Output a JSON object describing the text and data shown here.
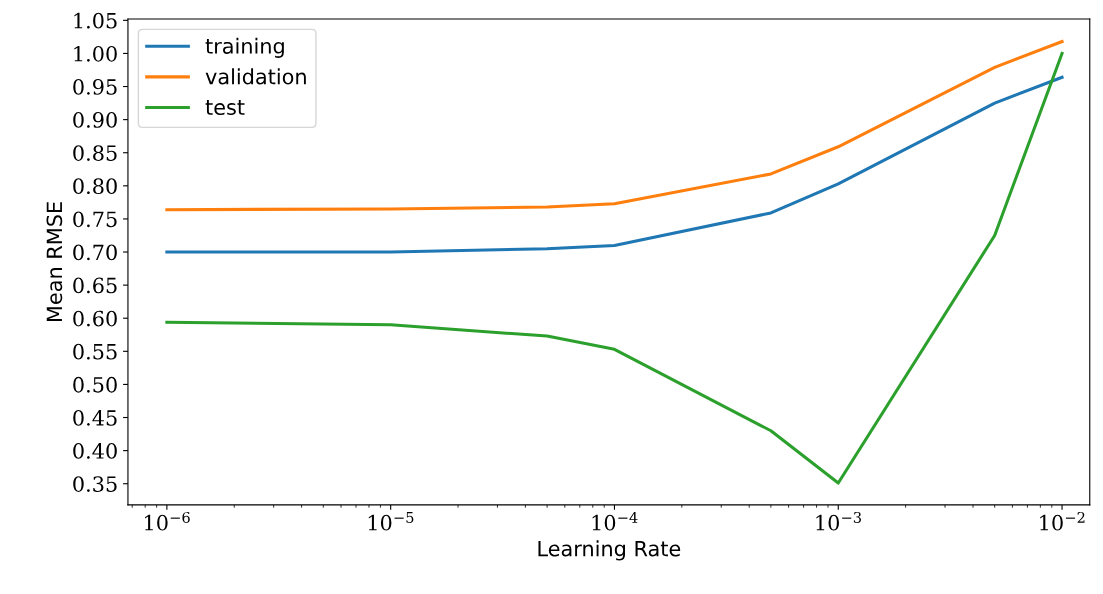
{
  "chart_data": {
    "type": "line",
    "xlabel": "Learning Rate",
    "ylabel": "Mean RMSE",
    "log": "x",
    "x": [
      1e-06,
      1e-05,
      5e-05,
      0.0001,
      0.0005,
      0.001,
      0.005,
      0.01
    ],
    "series": [
      {
        "name": "training",
        "color": "#1f77b4",
        "values": [
          0.7,
          0.7,
          0.705,
          0.71,
          0.759,
          0.803,
          0.925,
          0.964
        ]
      },
      {
        "name": "validation",
        "color": "#ff7f0e",
        "values": [
          0.764,
          0.765,
          0.768,
          0.773,
          0.818,
          0.859,
          0.979,
          1.018
        ]
      },
      {
        "name": "test",
        "color": "#2ca02c",
        "values": [
          0.594,
          0.59,
          0.573,
          0.553,
          0.43,
          0.351,
          0.725,
          1.0
        ]
      }
    ],
    "xlim": [
      6.7e-07,
      0.0133
    ],
    "xticks": [
      {
        "value": 1e-06,
        "label": "10$^{−6}$"
      },
      {
        "value": 1e-05,
        "label": "10$^{−5}$"
      },
      {
        "value": 0.0001,
        "label": "10$^{−4}$"
      },
      {
        "value": 0.001,
        "label": "10$^{−3}$"
      },
      {
        "value": 0.01,
        "label": "10$^{−2}$"
      }
    ],
    "ylim": [
      0.318,
      1.052
    ],
    "yticks": [
      {
        "value": 0.35,
        "label": "0.35"
      },
      {
        "value": 0.4,
        "label": "0.40"
      },
      {
        "value": 0.45,
        "label": "0.45"
      },
      {
        "value": 0.5,
        "label": "0.50"
      },
      {
        "value": 0.55,
        "label": "0.55"
      },
      {
        "value": 0.6,
        "label": "0.60"
      },
      {
        "value": 0.65,
        "label": "0.65"
      },
      {
        "value": 0.7,
        "label": "0.70"
      },
      {
        "value": 0.75,
        "label": "0.75"
      },
      {
        "value": 0.8,
        "label": "0.80"
      },
      {
        "value": 0.85,
        "label": "0.85"
      },
      {
        "value": 0.9,
        "label": "0.90"
      },
      {
        "value": 0.95,
        "label": "0.95"
      },
      {
        "value": 1.0,
        "label": "1.00"
      },
      {
        "value": 1.05,
        "label": "1.05"
      }
    ],
    "grid": false,
    "legend": "top left",
    "line_style": "solid",
    "marker": "none"
  }
}
